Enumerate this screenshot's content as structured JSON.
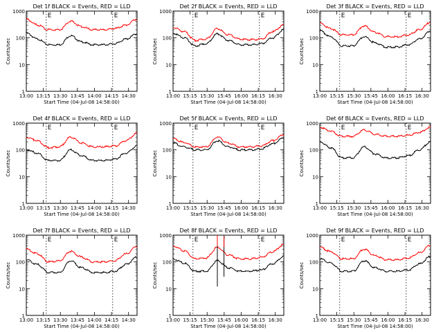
{
  "figure": {
    "ylabel": "Counts/sec",
    "xlabel": "Start Time (04-Jul-08 14:58:00)"
  },
  "axis": {
    "x_ticks": [
      "13:00",
      "13:15",
      "13:30",
      "13:45",
      "14:00",
      "14:15",
      "14:30"
    ],
    "x_ticks_alt": [
      "13:00",
      "15:15",
      "15:30",
      "15:45",
      "16:00",
      "16:15",
      "16:30"
    ],
    "xlim_minutes": [
      0,
      100
    ],
    "ylim": [
      1,
      1000
    ],
    "y_scale": "log",
    "y_ticks": [
      "1",
      "10",
      "100",
      "1000"
    ],
    "markers": [
      {
        "minute": 18,
        "label": "E"
      },
      {
        "minute": 78,
        "label": "E"
      }
    ]
  },
  "colors": {
    "events": "#000000",
    "lld": "#ff0000"
  },
  "chart_data": [
    {
      "type": "line",
      "title": "Det 1f BLACK = Events, RED = LLD",
      "series": [
        {
          "name": "Events",
          "x": [
            0,
            10,
            20,
            30,
            40,
            50,
            60,
            70,
            80,
            90,
            100
          ],
          "values": [
            150,
            90,
            55,
            55,
            120,
            70,
            55,
            55,
            60,
            90,
            140
          ]
        },
        {
          "name": "LLD",
          "x": [
            0,
            10,
            20,
            30,
            40,
            50,
            60,
            70,
            80,
            90,
            100
          ],
          "values": [
            500,
            300,
            200,
            200,
            420,
            260,
            200,
            200,
            220,
            300,
            500
          ]
        }
      ]
    },
    {
      "type": "line",
      "title": "Det 2f BLACK = Events, RED = LLD",
      "series": [
        {
          "name": "Events",
          "x": [
            0,
            10,
            20,
            30,
            40,
            50,
            60,
            70,
            80,
            90,
            100
          ],
          "values": [
            150,
            100,
            50,
            60,
            140,
            80,
            55,
            55,
            60,
            100,
            200
          ]
        },
        {
          "name": "LLD",
          "x": [
            0,
            10,
            20,
            30,
            40,
            50,
            60,
            70,
            80,
            90,
            100
          ],
          "values": [
            250,
            170,
            80,
            90,
            220,
            130,
            90,
            85,
            90,
            170,
            300
          ]
        }
      ]
    },
    {
      "type": "line",
      "title": "Det 3f BLACK = Events, RED = LLD",
      "series": [
        {
          "name": "Events",
          "x": [
            0,
            10,
            20,
            30,
            40,
            50,
            60,
            70,
            80,
            90,
            100
          ],
          "values": [
            180,
            110,
            50,
            50,
            110,
            65,
            45,
            45,
            55,
            90,
            180
          ]
        },
        {
          "name": "LLD",
          "x": [
            0,
            10,
            20,
            30,
            40,
            50,
            60,
            70,
            80,
            90,
            100
          ],
          "values": [
            350,
            220,
            130,
            130,
            280,
            160,
            110,
            110,
            130,
            200,
            380
          ]
        }
      ]
    },
    {
      "type": "line",
      "title": "Det 4f BLACK = Events, RED = LLD",
      "series": [
        {
          "name": "Events",
          "x": [
            0,
            10,
            20,
            30,
            40,
            50,
            60,
            70,
            80,
            90,
            100
          ],
          "values": [
            100,
            75,
            40,
            40,
            100,
            60,
            40,
            40,
            45,
            75,
            140
          ]
        },
        {
          "name": "LLD",
          "x": [
            0,
            10,
            20,
            30,
            40,
            50,
            60,
            70,
            80,
            90,
            100
          ],
          "values": [
            300,
            220,
            120,
            130,
            300,
            180,
            130,
            130,
            140,
            220,
            420
          ]
        }
      ]
    },
    {
      "type": "line",
      "title": "Det 5f BLACK = Events, RED = LLD",
      "series": [
        {
          "name": "Events",
          "x": [
            0,
            10,
            20,
            30,
            40,
            50,
            60,
            70,
            80,
            90,
            100
          ],
          "values": [
            180,
            130,
            100,
            100,
            220,
            130,
            100,
            100,
            110,
            170,
            280
          ]
        },
        {
          "name": "LLD",
          "x": [
            0,
            10,
            20,
            30,
            40,
            50,
            60,
            70,
            80,
            90,
            100
          ],
          "values": [
            260,
            190,
            130,
            130,
            300,
            180,
            130,
            130,
            140,
            220,
            380
          ]
        }
      ]
    },
    {
      "type": "line",
      "title": "Det 6f BLACK = Events, RED = LLD",
      "series": [
        {
          "name": "Events",
          "x": [
            0,
            10,
            20,
            30,
            40,
            50,
            60,
            70,
            80,
            90,
            100
          ],
          "values": [
            200,
            120,
            50,
            50,
            130,
            70,
            50,
            50,
            60,
            100,
            200
          ]
        },
        {
          "name": "LLD",
          "x": [
            0,
            10,
            20,
            30,
            40,
            50,
            60,
            70,
            80,
            90,
            100
          ],
          "values": [
            700,
            500,
            320,
            320,
            550,
            380,
            320,
            320,
            350,
            450,
            700
          ]
        }
      ]
    },
    {
      "type": "line",
      "title": "Det 7f BLACK = Events, RED = LLD",
      "series": [
        {
          "name": "Events",
          "x": [
            0,
            10,
            20,
            30,
            40,
            50,
            60,
            70,
            80,
            90,
            100
          ],
          "values": [
            120,
            80,
            40,
            40,
            110,
            60,
            40,
            40,
            45,
            80,
            150
          ]
        },
        {
          "name": "LLD",
          "x": [
            0,
            10,
            20,
            30,
            40,
            50,
            60,
            70,
            80,
            90,
            100
          ],
          "values": [
            300,
            200,
            100,
            110,
            250,
            150,
            100,
            100,
            110,
            200,
            380
          ]
        }
      ]
    },
    {
      "type": "line",
      "title": "Det 8f BLACK = Events, RED = LLD",
      "series": [
        {
          "name": "Events",
          "x": [
            0,
            10,
            20,
            30,
            40,
            50,
            60,
            70,
            80,
            90,
            100
          ],
          "values": [
            130,
            90,
            45,
            45,
            110,
            60,
            45,
            45,
            50,
            85,
            160
          ]
        },
        {
          "name": "LLD",
          "x": [
            0,
            10,
            20,
            30,
            40,
            50,
            60,
            70,
            80,
            90,
            100
          ],
          "values": [
            400,
            260,
            130,
            140,
            350,
            180,
            130,
            130,
            150,
            240,
            450
          ]
        }
      ],
      "spikes": [
        {
          "minute": 40,
          "low": 12,
          "high": 1000
        },
        {
          "minute": 46,
          "low": 28,
          "high": 900
        }
      ]
    },
    {
      "type": "line",
      "title": "Det 9f BLACK = Events, RED = LLD",
      "series": [
        {
          "name": "Events",
          "x": [
            0,
            10,
            20,
            30,
            40,
            50,
            60,
            70,
            80,
            90,
            100
          ],
          "values": [
            130,
            90,
            45,
            45,
            110,
            60,
            45,
            45,
            50,
            85,
            160
          ]
        },
        {
          "name": "LLD",
          "x": [
            0,
            10,
            20,
            30,
            40,
            50,
            60,
            70,
            80,
            90,
            100
          ],
          "values": [
            350,
            240,
            130,
            130,
            300,
            170,
            120,
            120,
            140,
            220,
            420
          ]
        }
      ]
    }
  ]
}
